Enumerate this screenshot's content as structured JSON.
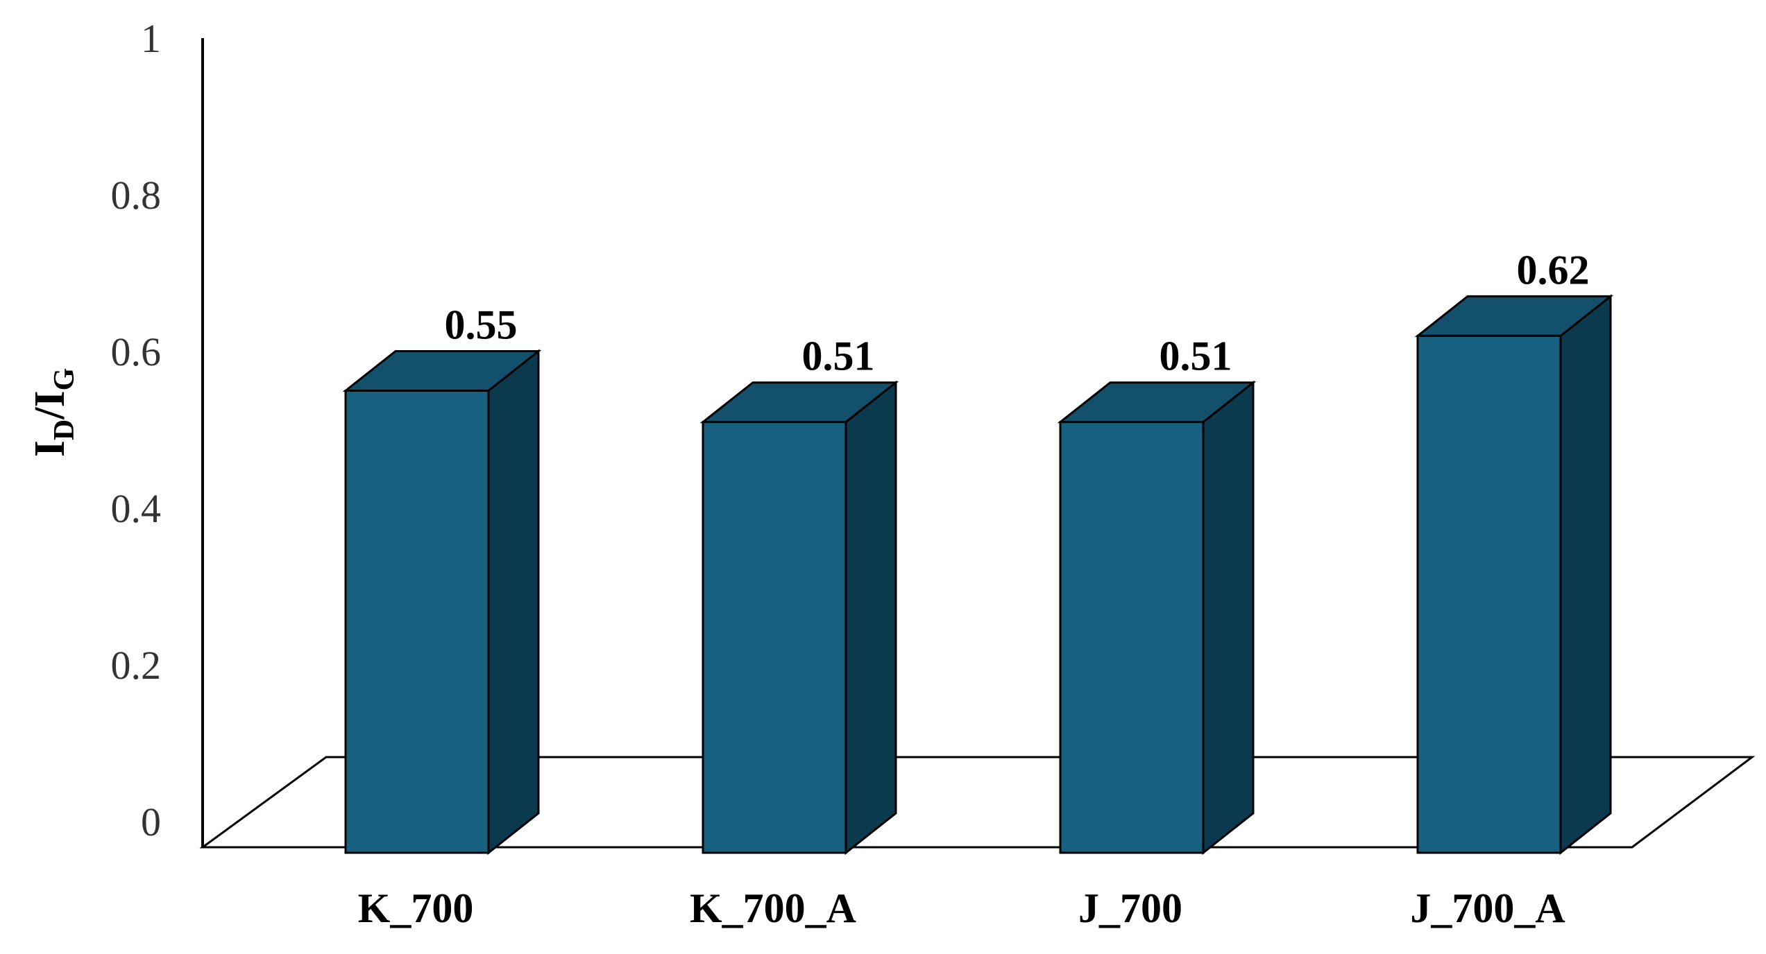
{
  "chart_data": {
    "type": "bar",
    "style": "3d-column",
    "categories": [
      "K_700",
      "K_700_A",
      "J_700",
      "J_700_A"
    ],
    "values": [
      0.55,
      0.51,
      0.51,
      0.62
    ],
    "data_labels": [
      "0.55",
      "0.51",
      "0.51",
      "0.62"
    ],
    "title": "",
    "xlabel": "",
    "ylabel": {
      "main": "I",
      "sub1": "D",
      "sep": "/I",
      "sub2": "G"
    },
    "ylim": [
      0,
      1
    ],
    "yticks": [
      "0",
      "0.2",
      "0.4",
      "0.6",
      "0.8",
      "1"
    ],
    "grid": false,
    "legend": "none",
    "colors": {
      "front": "#17607f",
      "top": "#12506b",
      "side": "#0b3a4f",
      "outline": "#000000"
    }
  }
}
